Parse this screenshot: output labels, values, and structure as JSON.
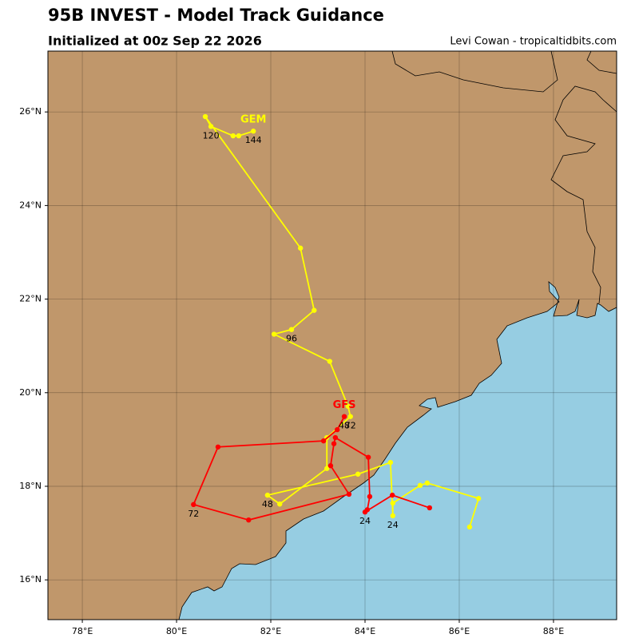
{
  "header": {
    "title": "95B INVEST - Model Track Guidance",
    "subtitle": "Initialized at 00z Sep 22 2026",
    "credit": "Levi Cowan - tropicaltidbits.com"
  },
  "map": {
    "xlim": [
      77.27,
      89.34
    ],
    "ylim": [
      15.15,
      27.3
    ],
    "xticks": [
      {
        "value": 78,
        "label": "78°E"
      },
      {
        "value": 80,
        "label": "80°E"
      },
      {
        "value": 82,
        "label": "82°E"
      },
      {
        "value": 84,
        "label": "84°E"
      },
      {
        "value": 86,
        "label": "86°E"
      },
      {
        "value": 88,
        "label": "88°E"
      }
    ],
    "yticks": [
      {
        "value": 16,
        "label": "16°N"
      },
      {
        "value": 18,
        "label": "18°N"
      },
      {
        "value": 20,
        "label": "20°N"
      },
      {
        "value": 22,
        "label": "22°N"
      },
      {
        "value": 24,
        "label": "24°N"
      },
      {
        "value": 26,
        "label": "26°N"
      }
    ],
    "grid": true,
    "tracks": [
      {
        "name": "GEM",
        "color": "#ffff00",
        "points": [
          {
            "lon": 86.22,
            "lat": 17.13
          },
          {
            "lon": 86.41,
            "lat": 17.74
          },
          {
            "lon": 85.32,
            "lat": 18.07
          },
          {
            "lon": 85.17,
            "lat": 18.02
          },
          {
            "lon": 84.59,
            "lat": 17.64
          },
          {
            "lon": 84.59,
            "lat": 17.37,
            "label": "24"
          },
          {
            "lon": 84.54,
            "lat": 18.51
          },
          {
            "lon": 83.85,
            "lat": 18.26
          },
          {
            "lon": 81.93,
            "lat": 17.81,
            "label": "48"
          },
          {
            "lon": 82.19,
            "lat": 17.62
          },
          {
            "lon": 83.19,
            "lat": 18.38
          },
          {
            "lon": 83.19,
            "lat": 19.04
          },
          {
            "lon": 83.69,
            "lat": 19.49,
            "label": "72"
          },
          {
            "lon": 83.64,
            "lat": 19.71
          },
          {
            "lon": 83.25,
            "lat": 20.67
          },
          {
            "lon": 82.07,
            "lat": 21.25
          },
          {
            "lon": 82.44,
            "lat": 21.35,
            "label": "96"
          },
          {
            "lon": 82.92,
            "lat": 21.76
          },
          {
            "lon": 82.63,
            "lat": 23.09
          },
          {
            "lon": 80.61,
            "lat": 25.9
          },
          {
            "lon": 80.73,
            "lat": 25.69,
            "label": "120"
          },
          {
            "lon": 81.2,
            "lat": 25.49
          },
          {
            "lon": 81.32,
            "lat": 25.49
          },
          {
            "lon": 81.63,
            "lat": 25.59,
            "label": "144"
          }
        ]
      },
      {
        "name": "GFS",
        "color": "#ff0000",
        "points": [
          {
            "lon": 85.37,
            "lat": 17.54
          },
          {
            "lon": 84.58,
            "lat": 17.81
          },
          {
            "lon": 84.0,
            "lat": 17.45,
            "label": "24"
          },
          {
            "lon": 84.05,
            "lat": 17.5
          },
          {
            "lon": 84.1,
            "lat": 17.78
          },
          {
            "lon": 84.07,
            "lat": 18.62
          },
          {
            "lon": 83.37,
            "lat": 19.04
          },
          {
            "lon": 83.34,
            "lat": 18.91
          },
          {
            "lon": 83.27,
            "lat": 18.44
          },
          {
            "lon": 83.66,
            "lat": 17.83
          },
          {
            "lon": 81.53,
            "lat": 17.28
          },
          {
            "lon": 80.36,
            "lat": 17.61,
            "label": "72"
          },
          {
            "lon": 80.88,
            "lat": 18.84
          },
          {
            "lon": 83.12,
            "lat": 18.97
          },
          {
            "lon": 83.41,
            "lat": 19.21
          },
          {
            "lon": 83.56,
            "lat": 19.49,
            "label": "48"
          }
        ]
      }
    ]
  }
}
